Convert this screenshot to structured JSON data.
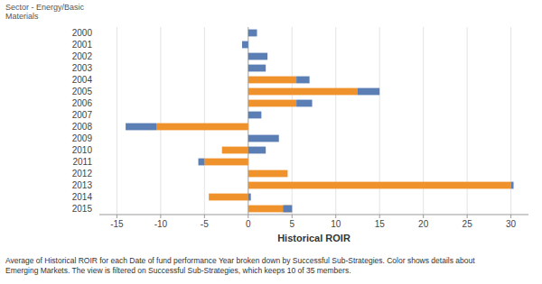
{
  "chart_data": {
    "type": "bar",
    "orientation": "horizontal",
    "stacked": true,
    "grid": true,
    "ylabel": "Sector - Energy/Basic\nMaterials",
    "xlabel": "Historical ROIR",
    "caption": "Average of Historical ROIR for each Date of fund performance Year broken down by Successful Sub-Strategies.  Color shows details about\nEmerging Markets. The view is filtered on Successful Sub-Strategies, which keeps 10 of 35 members.",
    "categories": [
      "2000",
      "2001",
      "2002",
      "2003",
      "2004",
      "2005",
      "2006",
      "2007",
      "2008",
      "2009",
      "2010",
      "2011",
      "2012",
      "2013",
      "2014",
      "2015"
    ],
    "series": [
      {
        "color": "#f0922b",
        "values": [
          0,
          0,
          0,
          0,
          5.5,
          12.5,
          5.5,
          0,
          -10.5,
          0,
          -3.0,
          -5.0,
          4.5,
          30.0,
          -4.5,
          5.0
        ]
      },
      {
        "color": "#5b7eb5",
        "values": [
          1.0,
          -0.7,
          2.2,
          2.0,
          1.5,
          2.5,
          1.8,
          1.5,
          -3.5,
          3.5,
          2.0,
          -0.7,
          0,
          0.3,
          0.3,
          -1.0
        ]
      }
    ],
    "xlim": [
      -17,
      32
    ],
    "xticks": [
      -15,
      -10,
      -5,
      0,
      5,
      10,
      15,
      20,
      25,
      30
    ]
  }
}
